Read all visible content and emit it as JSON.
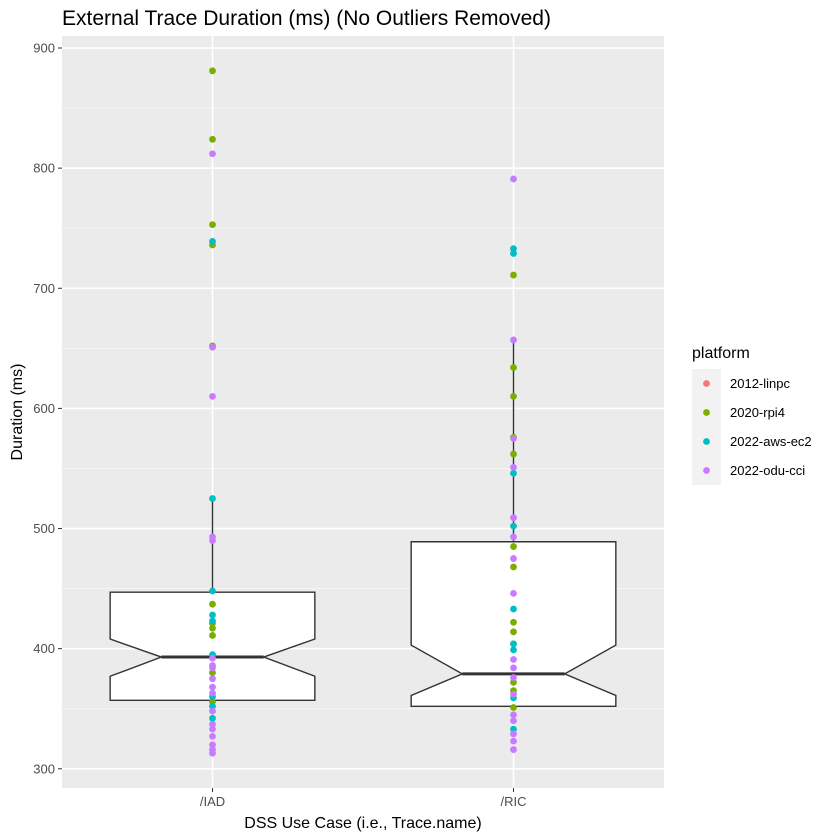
{
  "chart_data": {
    "type": "boxplot",
    "title": "External Trace Duration (ms) (No Outliers Removed)",
    "xlabel": "DSS Use Case (i.e., Trace.name)",
    "ylabel": "Duration (ms)",
    "categories": [
      "/IAD",
      "/RIC"
    ],
    "ylim": [
      284,
      910
    ],
    "yticks": [
      300,
      400,
      500,
      600,
      700,
      800,
      900
    ],
    "legend": {
      "title": "platform",
      "position": "right",
      "entries": [
        {
          "name": "2012-linpc",
          "color": "#F8766D"
        },
        {
          "name": "2020-rpi4",
          "color": "#7CAE00"
        },
        {
          "name": "2022-aws-ec2",
          "color": "#00BFC4"
        },
        {
          "name": "2022-odu-cci",
          "color": "#C77CFF"
        }
      ]
    },
    "boxes": [
      {
        "category": "/IAD",
        "q1": 357,
        "median": 393,
        "q3": 447,
        "notch_low": 377,
        "notch_high": 408,
        "whisker_low": 357,
        "whisker_high": 524
      },
      {
        "category": "/RIC",
        "q1": 352,
        "median": 379,
        "q3": 489,
        "notch_low": 361,
        "notch_high": 403,
        "whisker_low": 352,
        "whisker_high": 657
      }
    ],
    "series": [
      {
        "name": "2012-linpc",
        "points": [
          {
            "x": "/IAD",
            "y": 651
          }
        ]
      },
      {
        "name": "2020-rpi4",
        "points": [
          {
            "x": "/IAD",
            "y": 881
          },
          {
            "x": "/IAD",
            "y": 824
          },
          {
            "x": "/IAD",
            "y": 753
          },
          {
            "x": "/IAD",
            "y": 736
          },
          {
            "x": "/IAD",
            "y": 652
          },
          {
            "x": "/IAD",
            "y": 437
          },
          {
            "x": "/IAD",
            "y": 421
          },
          {
            "x": "/IAD",
            "y": 417
          },
          {
            "x": "/IAD",
            "y": 411
          },
          {
            "x": "/IAD",
            "y": 380
          },
          {
            "x": "/IAD",
            "y": 356
          },
          {
            "x": "/RIC",
            "y": 711
          },
          {
            "x": "/RIC",
            "y": 634
          },
          {
            "x": "/RIC",
            "y": 610
          },
          {
            "x": "/RIC",
            "y": 576
          },
          {
            "x": "/RIC",
            "y": 562
          },
          {
            "x": "/RIC",
            "y": 485
          },
          {
            "x": "/RIC",
            "y": 468
          },
          {
            "x": "/RIC",
            "y": 422
          },
          {
            "x": "/RIC",
            "y": 414
          },
          {
            "x": "/RIC",
            "y": 404
          },
          {
            "x": "/RIC",
            "y": 372
          },
          {
            "x": "/RIC",
            "y": 365
          },
          {
            "x": "/RIC",
            "y": 351
          }
        ]
      },
      {
        "name": "2022-aws-ec2",
        "points": [
          {
            "x": "/IAD",
            "y": 739
          },
          {
            "x": "/IAD",
            "y": 525
          },
          {
            "x": "/IAD",
            "y": 448
          },
          {
            "x": "/IAD",
            "y": 428
          },
          {
            "x": "/IAD",
            "y": 423
          },
          {
            "x": "/IAD",
            "y": 395
          },
          {
            "x": "/IAD",
            "y": 360
          },
          {
            "x": "/IAD",
            "y": 352
          },
          {
            "x": "/IAD",
            "y": 342
          },
          {
            "x": "/RIC",
            "y": 733
          },
          {
            "x": "/RIC",
            "y": 729
          },
          {
            "x": "/RIC",
            "y": 546
          },
          {
            "x": "/RIC",
            "y": 502
          },
          {
            "x": "/RIC",
            "y": 433
          },
          {
            "x": "/RIC",
            "y": 404
          },
          {
            "x": "/RIC",
            "y": 399
          },
          {
            "x": "/RIC",
            "y": 359
          },
          {
            "x": "/RIC",
            "y": 333
          }
        ]
      },
      {
        "name": "2022-odu-cci",
        "points": [
          {
            "x": "/IAD",
            "y": 812
          },
          {
            "x": "/IAD",
            "y": 651
          },
          {
            "x": "/IAD",
            "y": 610
          },
          {
            "x": "/IAD",
            "y": 493
          },
          {
            "x": "/IAD",
            "y": 490
          },
          {
            "x": "/IAD",
            "y": 392
          },
          {
            "x": "/IAD",
            "y": 386
          },
          {
            "x": "/IAD",
            "y": 384
          },
          {
            "x": "/IAD",
            "y": 375
          },
          {
            "x": "/IAD",
            "y": 368
          },
          {
            "x": "/IAD",
            "y": 363
          },
          {
            "x": "/IAD",
            "y": 348
          },
          {
            "x": "/IAD",
            "y": 337
          },
          {
            "x": "/IAD",
            "y": 333
          },
          {
            "x": "/IAD",
            "y": 327
          },
          {
            "x": "/IAD",
            "y": 320
          },
          {
            "x": "/IAD",
            "y": 316
          },
          {
            "x": "/IAD",
            "y": 313
          },
          {
            "x": "/RIC",
            "y": 791
          },
          {
            "x": "/RIC",
            "y": 657
          },
          {
            "x": "/RIC",
            "y": 575
          },
          {
            "x": "/RIC",
            "y": 551
          },
          {
            "x": "/RIC",
            "y": 509
          },
          {
            "x": "/RIC",
            "y": 493
          },
          {
            "x": "/RIC",
            "y": 475
          },
          {
            "x": "/RIC",
            "y": 446
          },
          {
            "x": "/RIC",
            "y": 391
          },
          {
            "x": "/RIC",
            "y": 384
          },
          {
            "x": "/RIC",
            "y": 376
          },
          {
            "x": "/RIC",
            "y": 362
          },
          {
            "x": "/RIC",
            "y": 345
          },
          {
            "x": "/RIC",
            "y": 340
          },
          {
            "x": "/RIC",
            "y": 329
          },
          {
            "x": "/RIC",
            "y": 323
          },
          {
            "x": "/RIC",
            "y": 316
          }
        ]
      }
    ]
  }
}
